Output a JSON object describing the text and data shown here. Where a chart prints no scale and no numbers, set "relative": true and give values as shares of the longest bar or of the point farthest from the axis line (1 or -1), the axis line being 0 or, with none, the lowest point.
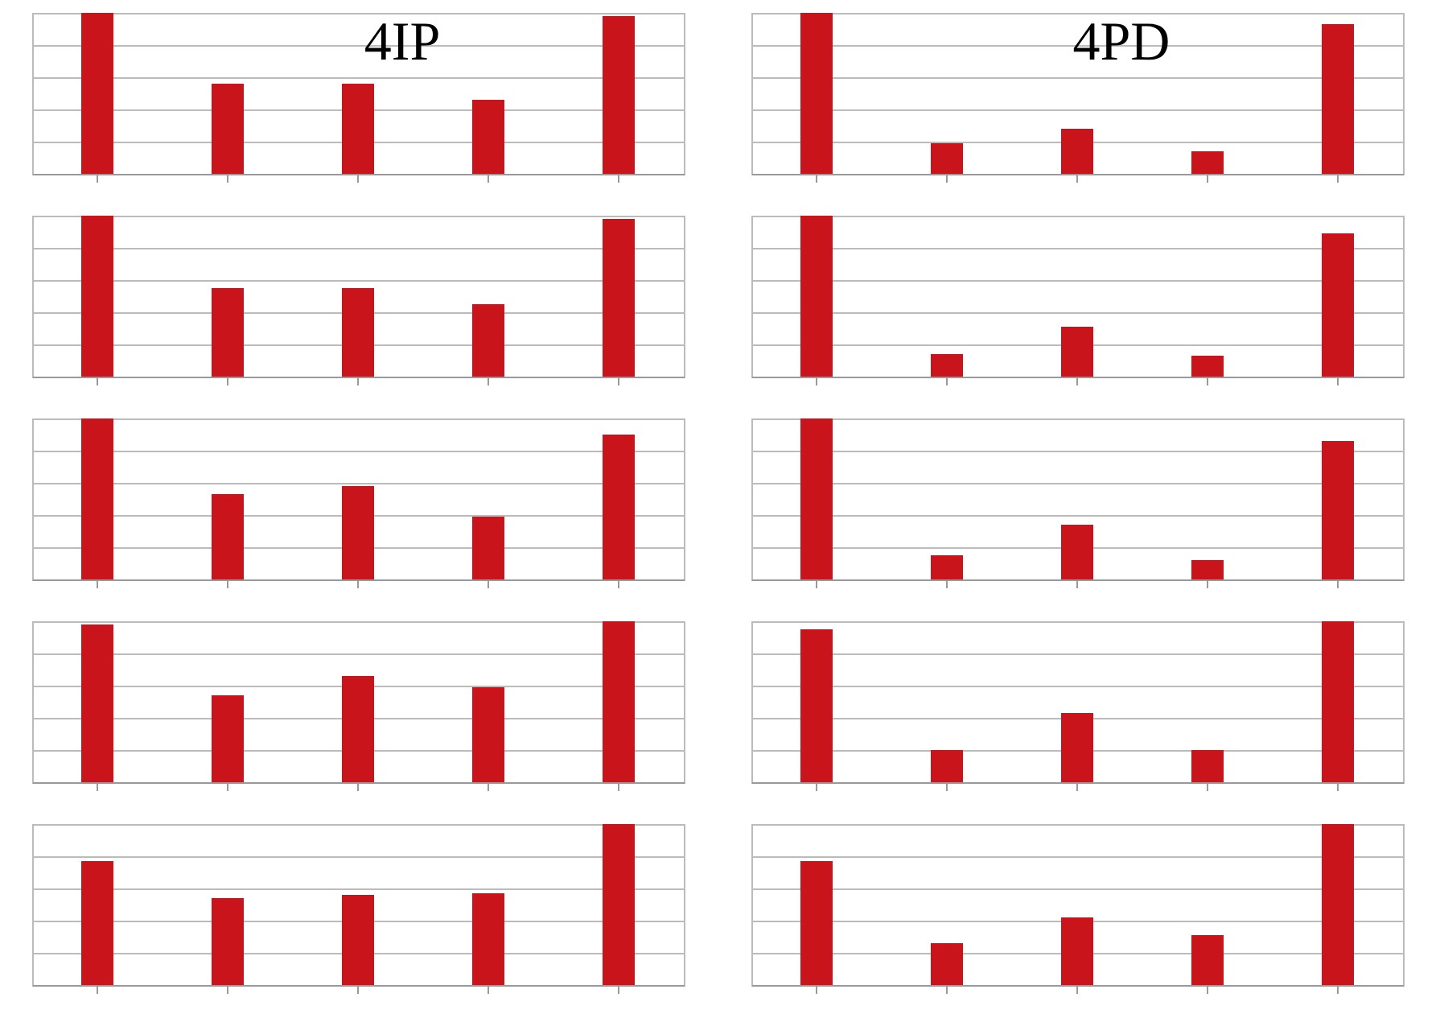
{
  "chart_data": [
    {
      "type": "bar",
      "relative": true,
      "grid": "y",
      "color": "#c8141a",
      "annotations": [
        "4IP"
      ],
      "categories": [
        null,
        null,
        null,
        null,
        null
      ],
      "values": [
        1,
        0.56,
        0.56,
        0.46,
        0.98
      ]
    },
    {
      "type": "bar",
      "relative": true,
      "grid": "y",
      "color": "#c8141a",
      "annotations": [
        "4PD"
      ],
      "categories": [
        null,
        null,
        null,
        null,
        null
      ],
      "values": [
        1,
        0.19,
        0.28,
        0.14,
        0.93
      ]
    },
    {
      "type": "bar",
      "relative": true,
      "grid": "y",
      "color": "#c8141a",
      "categories": [
        null,
        null,
        null,
        null,
        null
      ],
      "values": [
        1,
        0.55,
        0.55,
        0.45,
        0.98
      ]
    },
    {
      "type": "bar",
      "relative": true,
      "grid": "y",
      "color": "#c8141a",
      "categories": [
        null,
        null,
        null,
        null,
        null
      ],
      "values": [
        1,
        0.14,
        0.31,
        0.13,
        0.89
      ]
    },
    {
      "type": "bar",
      "relative": true,
      "grid": "y",
      "color": "#c8141a",
      "categories": [
        null,
        null,
        null,
        null,
        null
      ],
      "values": [
        1,
        0.53,
        0.58,
        0.39,
        0.9
      ]
    },
    {
      "type": "bar",
      "relative": true,
      "grid": "y",
      "color": "#c8141a",
      "categories": [
        null,
        null,
        null,
        null,
        null
      ],
      "values": [
        1,
        0.15,
        0.34,
        0.12,
        0.86
      ]
    },
    {
      "type": "bar",
      "relative": true,
      "grid": "y",
      "color": "#c8141a",
      "categories": [
        null,
        null,
        null,
        null,
        null
      ],
      "values": [
        0.98,
        0.54,
        0.66,
        0.59,
        1
      ]
    },
    {
      "type": "bar",
      "relative": true,
      "grid": "y",
      "color": "#c8141a",
      "categories": [
        null,
        null,
        null,
        null,
        null
      ],
      "values": [
        0.95,
        0.2,
        0.43,
        0.2,
        1
      ]
    },
    {
      "type": "bar",
      "relative": true,
      "grid": "y",
      "color": "#c8141a",
      "categories": [
        null,
        null,
        null,
        null,
        null
      ],
      "values": [
        0.77,
        0.54,
        0.56,
        0.57,
        1
      ]
    },
    {
      "type": "bar",
      "relative": true,
      "grid": "y",
      "color": "#c8141a",
      "categories": [
        null,
        null,
        null,
        null,
        null
      ],
      "values": [
        0.77,
        0.26,
        0.42,
        0.31,
        1
      ]
    }
  ]
}
